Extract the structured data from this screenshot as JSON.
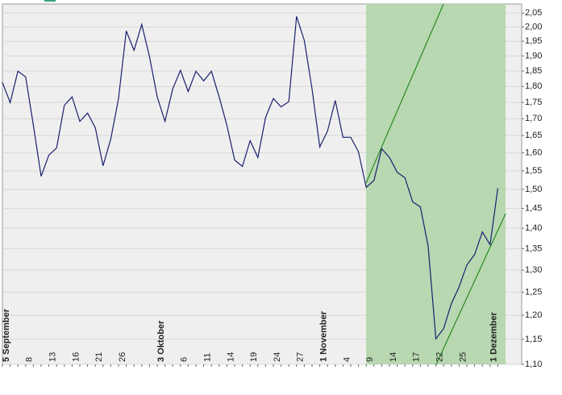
{
  "chart_data": {
    "type": "line",
    "log_scale": true,
    "grid": true,
    "categories": [
      "5 September",
      null,
      null,
      "8",
      null,
      null,
      "13",
      null,
      null,
      "16",
      null,
      null,
      "21",
      null,
      null,
      "26",
      null,
      null,
      null,
      null,
      "3 Oktober",
      null,
      null,
      "6",
      null,
      null,
      "11",
      null,
      null,
      "14",
      null,
      null,
      "19",
      null,
      null,
      "24",
      null,
      null,
      "27",
      null,
      null,
      "1 November",
      null,
      null,
      "4",
      null,
      null,
      "9",
      null,
      null,
      "14",
      null,
      null,
      "17",
      null,
      null,
      "22",
      null,
      null,
      "25",
      null,
      null,
      null,
      "1 Dezember",
      null
    ],
    "series": [
      {
        "color": "#1a1f6e",
        "values": [
          1.813,
          1.749,
          1.849,
          1.831,
          1.68,
          1.535,
          1.594,
          1.614,
          1.741,
          1.767,
          1.692,
          1.717,
          1.673,
          1.564,
          1.64,
          1.762,
          1.986,
          1.919,
          2.009,
          1.898,
          1.767,
          1.692,
          1.792,
          1.852,
          1.784,
          1.849,
          1.818,
          1.849,
          1.767,
          1.68,
          1.58,
          1.562,
          1.635,
          1.587,
          1.704,
          1.762,
          1.736,
          1.752,
          2.038,
          1.953,
          1.792,
          1.617,
          1.663,
          1.756,
          1.645,
          1.645,
          1.603,
          1.505,
          1.524,
          1.612,
          1.587,
          1.546,
          1.531,
          1.467,
          1.454,
          1.356,
          1.151,
          1.172,
          1.225,
          1.262,
          1.312,
          1.336,
          1.391,
          1.36,
          1.503
        ]
      }
    ],
    "ylim": [
      1.1,
      2.083
    ],
    "yticks": [
      {
        "value": 1.1,
        "label": "1,10"
      },
      {
        "value": 1.15,
        "label": "1,15"
      },
      {
        "value": 1.2,
        "label": "1,20"
      },
      {
        "value": 1.25,
        "label": "1,25"
      },
      {
        "value": 1.3,
        "label": "1,30"
      },
      {
        "value": 1.35,
        "label": "1,35"
      },
      {
        "value": 1.4,
        "label": "1,40"
      },
      {
        "value": 1.45,
        "label": "1,45"
      },
      {
        "value": 1.5,
        "label": "1,50"
      },
      {
        "value": 1.55,
        "label": "1,55"
      },
      {
        "value": 1.6,
        "label": "1,60"
      },
      {
        "value": 1.65,
        "label": "1,65"
      },
      {
        "value": 1.7,
        "label": "1,70"
      },
      {
        "value": 1.75,
        "label": "1,75"
      },
      {
        "value": 1.8,
        "label": "1,80"
      },
      {
        "value": 1.85,
        "label": "1,85"
      },
      {
        "value": 1.9,
        "label": "1,90"
      },
      {
        "value": 1.95,
        "label": "1,95"
      },
      {
        "value": 2.0,
        "label": "2,00"
      },
      {
        "value": 2.05,
        "label": "2,05"
      }
    ]
  }
}
